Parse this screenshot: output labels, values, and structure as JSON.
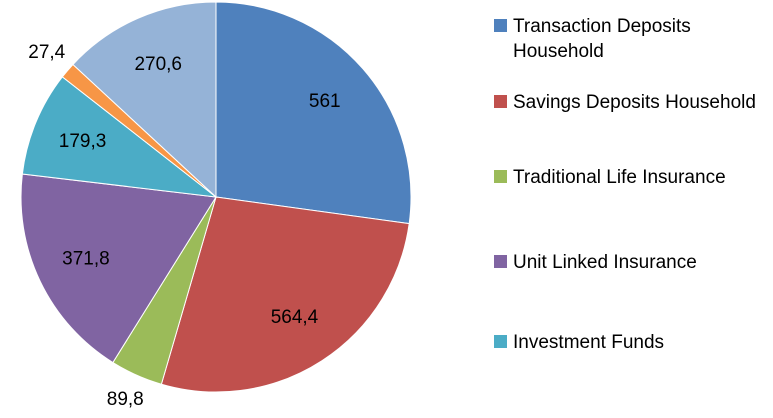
{
  "chart_data": {
    "type": "pie",
    "categories": [
      "Transaction Deposits Household",
      "Savings Deposits Household",
      "Traditional Life Insurance",
      "Unit Linked Insurance",
      "Investment Funds",
      null,
      null
    ],
    "values": [
      561,
      564.4,
      89.8,
      371.8,
      179.3,
      27.4,
      270.6
    ],
    "value_labels": [
      "561",
      "564,4",
      "89,8",
      "371,8",
      "179,3",
      "27,4",
      "270,6"
    ],
    "colors": [
      "#4f81bd",
      "#c0504d",
      "#9bbb59",
      "#8064a2",
      "#4bacc6",
      "#f79646",
      "#95b3d7"
    ]
  }
}
